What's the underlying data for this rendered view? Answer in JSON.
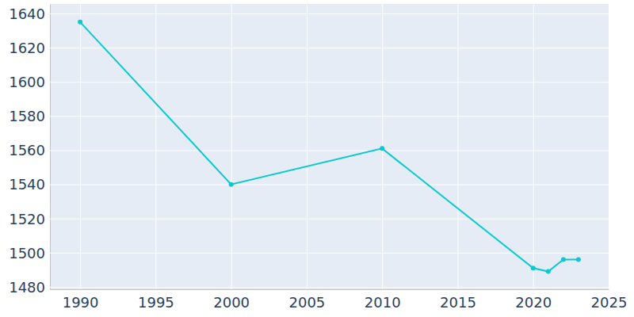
{
  "chart_data": {
    "type": "line",
    "x": [
      1990,
      2000,
      2010,
      2020,
      2021,
      2022,
      2023
    ],
    "values": [
      1635,
      1540,
      1561,
      1491,
      1489,
      1496,
      1496
    ],
    "color": "#0bc9cd",
    "marker": "circle",
    "xlim": [
      1988,
      2025
    ],
    "xticks": [
      1990,
      1995,
      2000,
      2005,
      2010,
      2015,
      2020,
      2025
    ],
    "ylim": [
      1478.6,
      1645.6
    ],
    "yticks": [
      1480,
      1500,
      1520,
      1540,
      1560,
      1580,
      1600,
      1620,
      1640
    ],
    "grid": true
  }
}
